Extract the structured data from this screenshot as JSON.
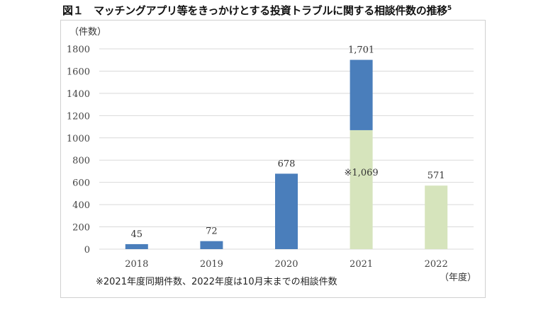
{
  "title": "図１　マッチングアプリ等をきっかけとする投資トラブルに関する相談件数の推移",
  "title_sup": "5",
  "chart_data": {
    "type": "bar",
    "stacked": true,
    "categories": [
      "2018",
      "2019",
      "2020",
      "2021",
      "2022"
    ],
    "series": [
      {
        "values": [
          0,
          0,
          0,
          1069,
          571
        ],
        "color": "#d6e4bc"
      },
      {
        "values": [
          45,
          72,
          678,
          632,
          0
        ],
        "color": "#4a7ebb"
      }
    ],
    "data_labels": [
      "45",
      "72",
      "678",
      "1,701",
      "571"
    ],
    "annotation": "※1,069",
    "ylabel": "（件数）",
    "xlabel": "（年度）",
    "ylim": [
      0,
      1800
    ],
    "yticks": [
      0,
      200,
      400,
      600,
      800,
      1000,
      1200,
      1400,
      1600,
      1800
    ],
    "grid": true,
    "footnote": "※2021年度同期件数、2022年度は10月末までの相談件数"
  }
}
